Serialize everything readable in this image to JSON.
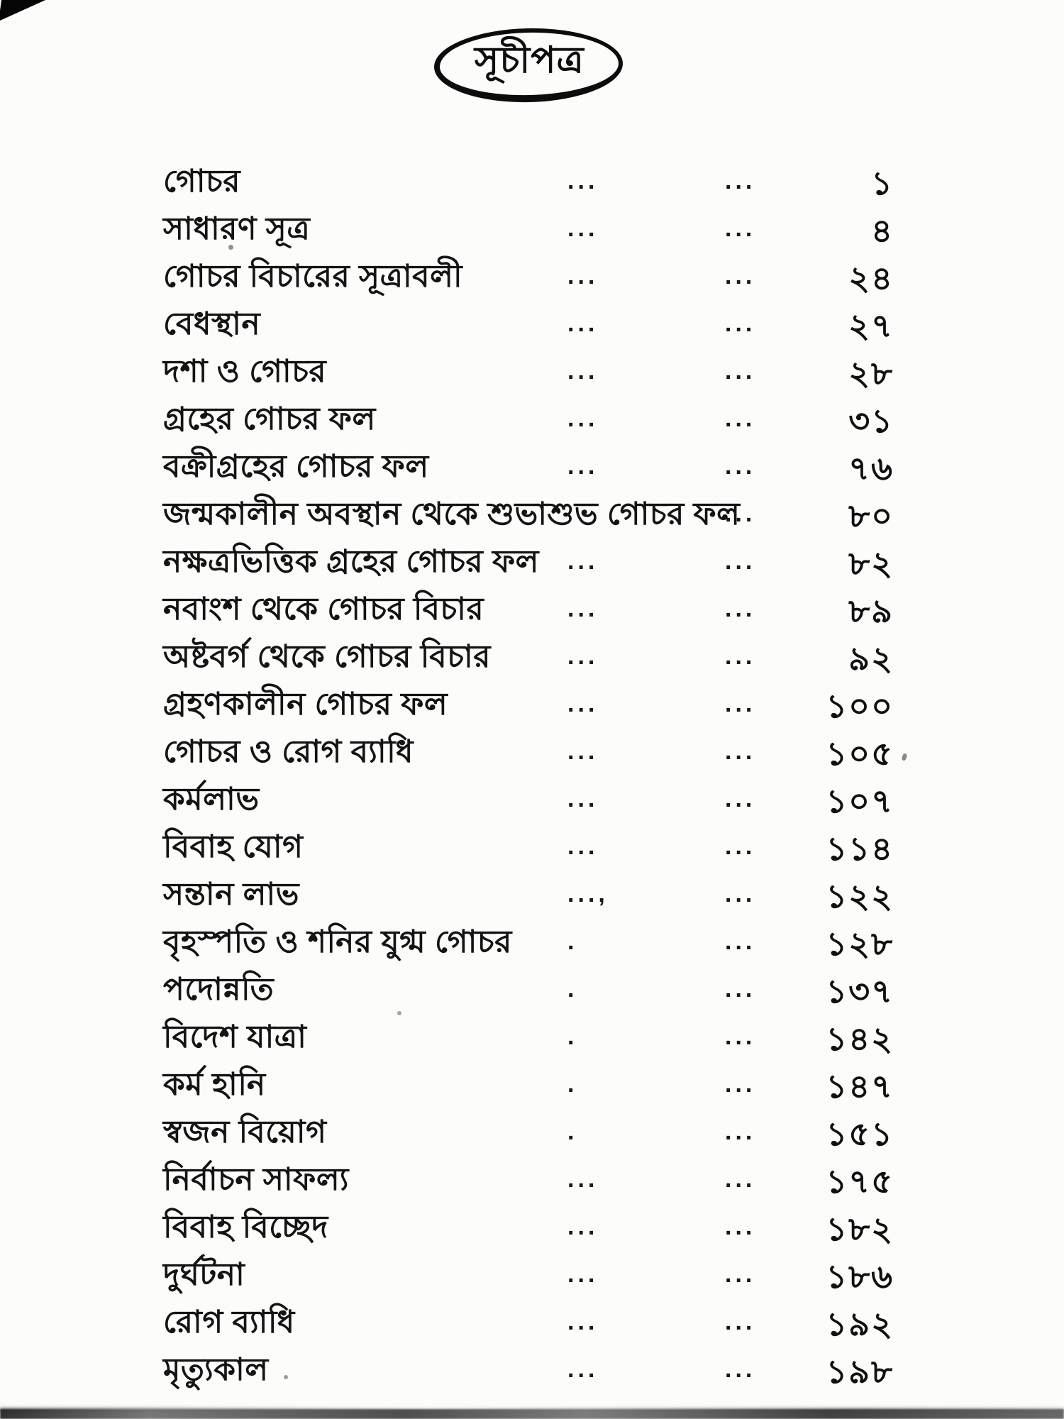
{
  "page": {
    "title": "সূচীপত্র"
  },
  "toc": {
    "entries": [
      {
        "title": "গোচর",
        "dots1": "...",
        "dots2": "...",
        "page": "১"
      },
      {
        "title": "সাধারণ সূত্র",
        "dots1": "...",
        "dots2": "...",
        "page": "৪"
      },
      {
        "title": "গোচর বিচারের সূত্রাবলী",
        "dots1": "...",
        "dots2": "...",
        "page": "২৪"
      },
      {
        "title": "বেধস্থান",
        "dots1": "...",
        "dots2": "...",
        "page": "২৭"
      },
      {
        "title": "দশা ও গোচর",
        "dots1": "...",
        "dots2": "...",
        "page": "২৮"
      },
      {
        "title": "গ্রহের গোচর ফল",
        "dots1": "...",
        "dots2": "...",
        "page": "৩১"
      },
      {
        "title": "বক্রীগ্রহের গোচর ফল",
        "dots1": "...",
        "dots2": "...",
        "page": "৭৬"
      },
      {
        "title": "জন্মকালীন অবস্থান থেকে শুভাশুভ গোচর ফল",
        "dots1": "",
        "dots2": "...",
        "page": "৮০"
      },
      {
        "title": "নক্ষত্রভিত্তিক গ্রহের গোচর ফল",
        "dots1": "...",
        "dots2": "...",
        "page": "৮২"
      },
      {
        "title": "নবাংশ থেকে গোচর বিচার",
        "dots1": "...",
        "dots2": "...",
        "page": "৮৯"
      },
      {
        "title": "অষ্টবর্গ থেকে গোচর বিচার",
        "dots1": "...",
        "dots2": "...",
        "page": "৯২"
      },
      {
        "title": "গ্রহণকালীন গোচর ফল",
        "dots1": "...",
        "dots2": "...",
        "page": "১০০"
      },
      {
        "title": "গোচর ও রোগ ব্যাধি",
        "dots1": "...",
        "dots2": "...",
        "page": "১০৫"
      },
      {
        "title": "কর্মলাভ",
        "dots1": "...",
        "dots2": "...",
        "page": "১০৭"
      },
      {
        "title": "বিবাহ যোগ",
        "dots1": "...",
        "dots2": "...",
        "page": "১১৪"
      },
      {
        "title": "সন্তান লাভ",
        "dots1": "...,",
        "dots2": "...",
        "page": "১২২"
      },
      {
        "title": "বৃহস্পতি ও শনির যুগ্ম গোচর",
        "dots1": ".",
        "dots2": "...",
        "page": "১২৮"
      },
      {
        "title": "পদোন্নতি",
        "dots1": ".",
        "dots2": "...",
        "page": "১৩৭"
      },
      {
        "title": "বিদেশ যাত্রা",
        "dots1": ".",
        "dots2": "...",
        "page": "১৪২"
      },
      {
        "title": "কর্ম হানি",
        "dots1": ".",
        "dots2": "...",
        "page": "১৪৭"
      },
      {
        "title": "স্বজন বিয়োগ",
        "dots1": ".",
        "dots2": "...",
        "page": "১৫১"
      },
      {
        "title": "নির্বাচন সাফল্য",
        "dots1": "...",
        "dots2": "...",
        "page": "১৭৫"
      },
      {
        "title": "বিবাহ বিচ্ছেদ",
        "dots1": "...",
        "dots2": "...",
        "page": "১৮২"
      },
      {
        "title": "দুর্ঘটনা",
        "dots1": "...",
        "dots2": "...",
        "page": "১৮৬"
      },
      {
        "title": "রোগ ব্যাধি",
        "dots1": "...",
        "dots2": "...",
        "page": "১৯২"
      },
      {
        "title": "মৃত্যুকাল",
        "dots1": "...",
        "dots2": "...",
        "page": "১৯৮"
      }
    ]
  }
}
